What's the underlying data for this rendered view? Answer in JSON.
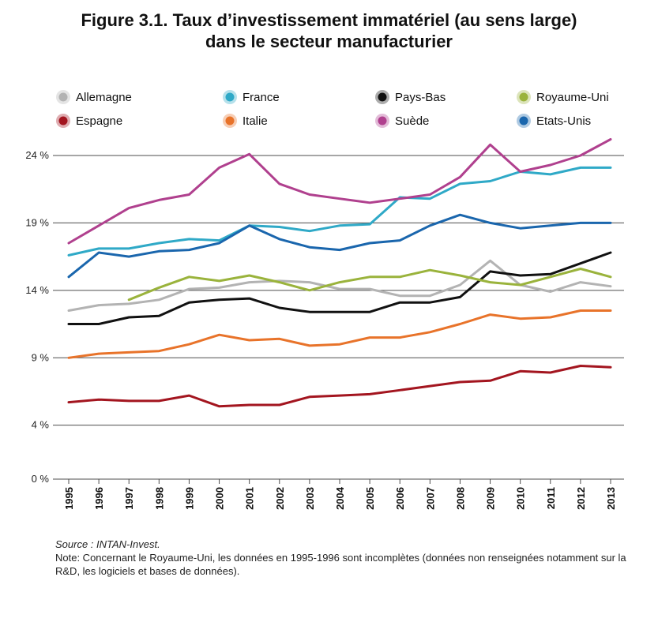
{
  "title_line1": "Figure 3.1. Taux d’investissement immatériel (au sens large)",
  "title_line2": "dans le secteur manufacturier",
  "source": "Source : INTAN-Invest.",
  "note": "Note: Concernant le Royaume-Uni, les données en 1995-1996 sont incomplètes (données non renseignées notamment sur la R&D, les logiciels et bases de données).",
  "chart_data": {
    "type": "line",
    "title": "Figure 3.1. Taux d’investissement immatériel (au sens large) dans le secteur manufacturier",
    "xlabel": "",
    "ylabel": "",
    "ylim": [
      0,
      26
    ],
    "yticks": [
      0,
      4,
      9,
      14,
      19,
      24
    ],
    "ytick_labels": [
      "0 %",
      "4 %",
      "9 %",
      "14 %",
      "19 %",
      "24 %"
    ],
    "grid": "horizontal",
    "legend_position": "top",
    "x": [
      "1995",
      "1996",
      "1997",
      "1998",
      "1999",
      "2000",
      "2001",
      "2002",
      "2003",
      "2004",
      "2005",
      "2006",
      "2007",
      "2008",
      "2009",
      "2010",
      "2011",
      "2012",
      "2013"
    ],
    "series": [
      {
        "name": "Allemagne",
        "color": "#b3b3b3",
        "values": [
          12.5,
          12.9,
          13.0,
          13.3,
          14.1,
          14.2,
          14.6,
          14.7,
          14.6,
          14.1,
          14.1,
          13.6,
          13.6,
          14.4,
          16.2,
          14.4,
          13.9,
          14.6,
          14.3
        ]
      },
      {
        "name": "France",
        "color": "#2fa9c7",
        "values": [
          16.6,
          17.1,
          17.1,
          17.5,
          17.8,
          17.7,
          18.8,
          18.7,
          18.4,
          18.8,
          18.9,
          20.9,
          20.8,
          21.9,
          22.1,
          22.8,
          22.6,
          23.1,
          23.1
        ]
      },
      {
        "name": "Pays-Bas",
        "color": "#111111",
        "values": [
          11.5,
          11.5,
          12.0,
          12.1,
          13.1,
          13.3,
          13.4,
          12.7,
          12.4,
          12.4,
          12.4,
          13.1,
          13.1,
          13.5,
          15.4,
          15.1,
          15.2,
          16.0,
          16.8
        ]
      },
      {
        "name": "Royaume-Uni",
        "color": "#9ab33c",
        "values": [
          null,
          null,
          13.3,
          14.2,
          15.0,
          14.7,
          15.1,
          14.6,
          14.0,
          14.6,
          15.0,
          15.0,
          15.5,
          15.1,
          14.6,
          14.4,
          15.0,
          15.6,
          15.0
        ]
      },
      {
        "name": "Espagne",
        "color": "#a3151f",
        "values": [
          5.7,
          5.9,
          5.8,
          5.8,
          6.2,
          5.4,
          5.5,
          5.5,
          6.1,
          6.2,
          6.3,
          6.6,
          6.9,
          7.2,
          7.3,
          8.0,
          7.9,
          8.4,
          8.3
        ]
      },
      {
        "name": "Italie",
        "color": "#e8732a",
        "values": [
          9.0,
          9.3,
          9.4,
          9.5,
          10.0,
          10.7,
          10.3,
          10.4,
          9.9,
          10.0,
          10.5,
          10.5,
          10.9,
          11.5,
          12.2,
          11.9,
          12.0,
          12.5,
          12.5
        ]
      },
      {
        "name": "Suède",
        "color": "#b0408e",
        "values": [
          17.5,
          18.8,
          20.1,
          20.7,
          21.1,
          23.1,
          24.1,
          21.9,
          21.1,
          20.8,
          20.5,
          20.8,
          21.1,
          22.4,
          24.8,
          22.8,
          23.3,
          24.0,
          25.2
        ]
      },
      {
        "name": "Etats-Unis",
        "color": "#1a66ad",
        "values": [
          15.0,
          16.8,
          16.5,
          16.9,
          17.0,
          17.5,
          18.8,
          17.8,
          17.2,
          17.0,
          17.5,
          17.7,
          18.8,
          19.6,
          19.0,
          18.6,
          18.8,
          19.0,
          19.0
        ]
      }
    ]
  }
}
